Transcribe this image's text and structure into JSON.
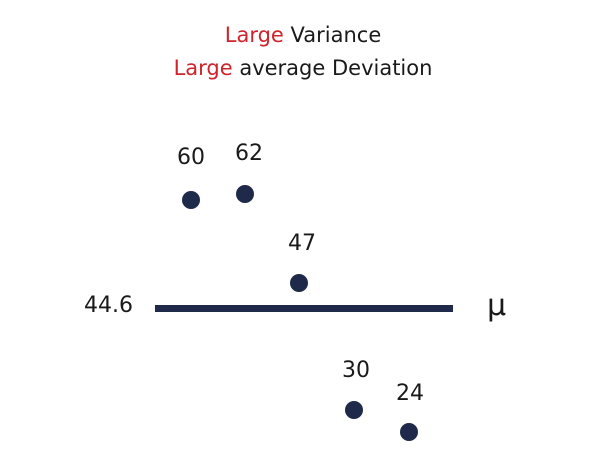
{
  "title": {
    "line1_emphasis": "Large",
    "line1_rest": " Variance",
    "line2_emphasis": "Large",
    "line2_rest": " average Deviation"
  },
  "mean": {
    "value_label": "44.6",
    "symbol": "μ"
  },
  "points": [
    {
      "value": "60"
    },
    {
      "value": "62"
    },
    {
      "value": "47"
    },
    {
      "value": "30"
    },
    {
      "value": "24"
    }
  ],
  "colors": {
    "accent_red": "#d0232b",
    "dot_navy": "#1f2a4a",
    "text": "#1a1a1a"
  }
}
